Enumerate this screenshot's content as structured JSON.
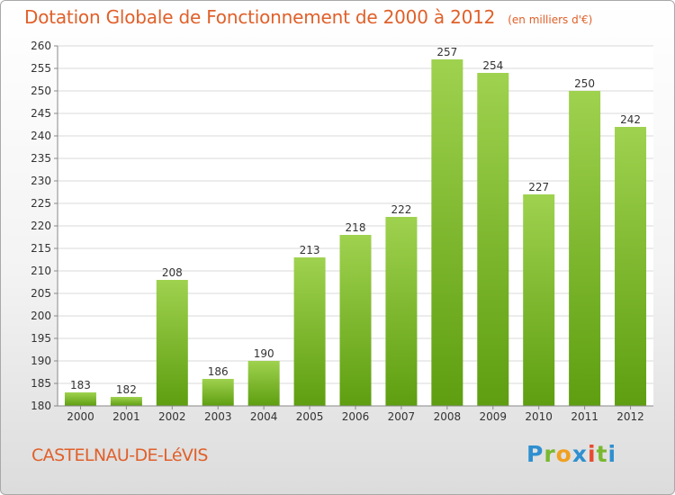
{
  "title": "Dotation Globale de Fonctionnement de 2000 à 2012",
  "unit_note": "(en milliers d'€)",
  "commune": "CASTELNAU-DE-LéVIS",
  "logo": {
    "letters": [
      "P",
      "r",
      "o",
      "x",
      "i",
      "t",
      "i"
    ],
    "colors": [
      "#2f8fd0",
      "#79b82e",
      "#f0a020",
      "#2f8fd0",
      "#e84a2f",
      "#79b82e",
      "#2f8fd0"
    ]
  },
  "colors": {
    "title": "#e0602a",
    "bar_light": "#9fd24f",
    "bar_dark": "#5e9e10",
    "grid": "#d8d8d8"
  },
  "chart_data": {
    "type": "bar",
    "categories": [
      "2000",
      "2001",
      "2002",
      "2003",
      "2004",
      "2005",
      "2006",
      "2007",
      "2008",
      "2009",
      "2010",
      "2011",
      "2012"
    ],
    "values": [
      183,
      182,
      208,
      186,
      190,
      213,
      218,
      222,
      257,
      254,
      227,
      250,
      242
    ],
    "ylim": [
      180,
      260
    ],
    "yticks": [
      180,
      185,
      190,
      195,
      200,
      205,
      210,
      215,
      220,
      225,
      230,
      235,
      240,
      245,
      250,
      255,
      260
    ],
    "grid": "horizontal",
    "data_labels": true
  }
}
